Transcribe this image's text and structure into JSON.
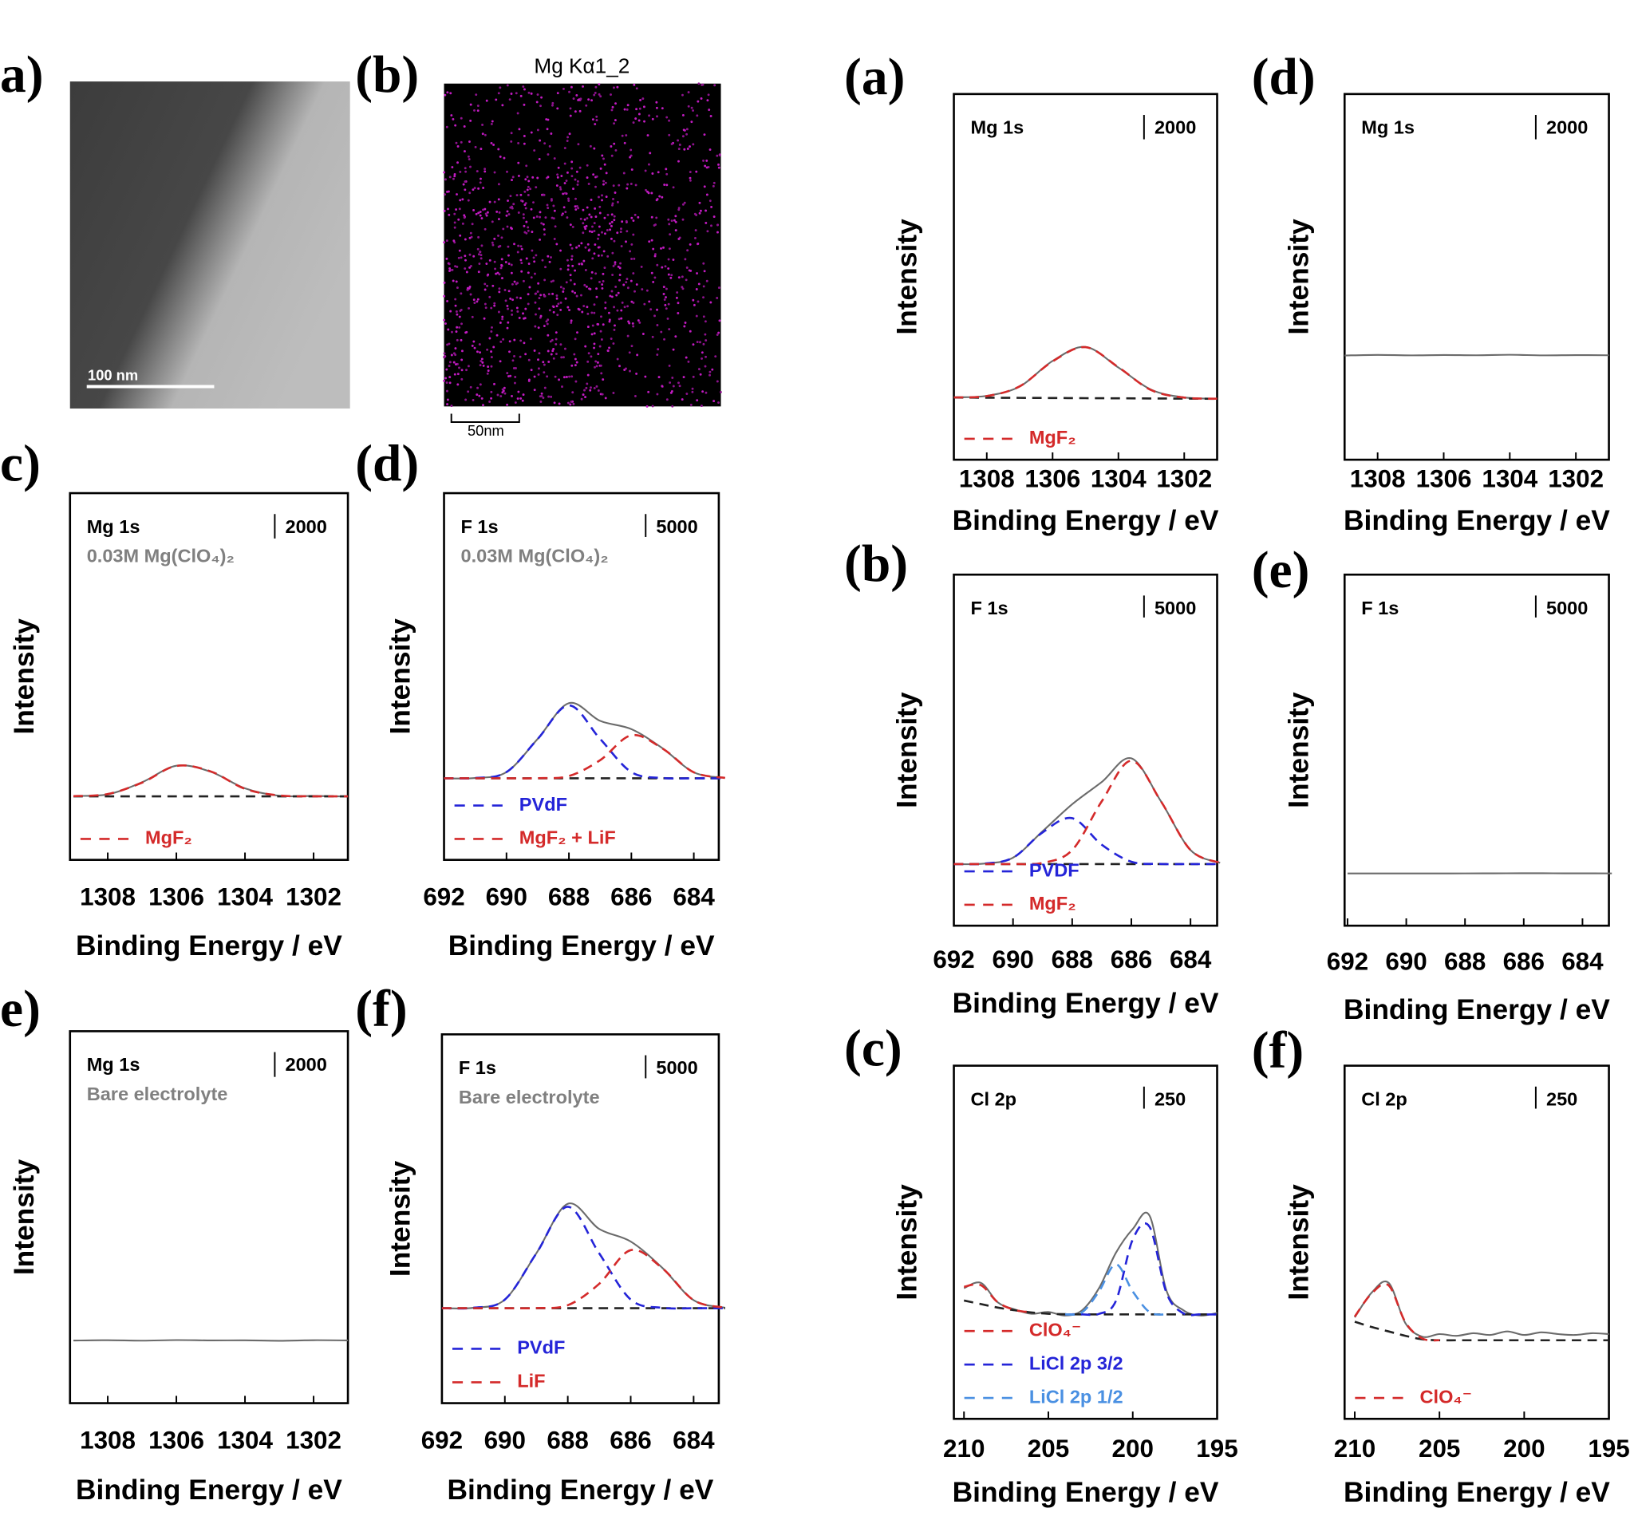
{
  "images": [
    {
      "panel_label": "a)",
      "scale_bar": "100 nm"
    },
    {
      "panel_label": "(b)",
      "title": "Mg Kα1_2",
      "scale_bar": "50nm"
    }
  ],
  "chart_data": [
    {
      "type": "line",
      "panel_label": "c)",
      "element": "Mg 1s",
      "subtitle": "0.03M Mg(ClO₄)₂",
      "scale_bar": 2000,
      "ylabel": "Intensity",
      "xlabel": "Binding Energy / eV",
      "xlim": [
        1309.1,
        1301
      ],
      "ylim": [
        0,
        30000
      ],
      "xticks": [
        1308,
        1306,
        1304,
        1302
      ],
      "x": [
        1309,
        1308,
        1307,
        1306,
        1305,
        1304,
        1303,
        1302,
        1301
      ],
      "series": [
        {
          "color": "#6b6b6b",
          "line_style": "solid",
          "values": [
            5230,
            5360,
            6350,
            7700,
            7210,
            5850,
            5240,
            5230,
            5180
          ]
        },
        {
          "color": "#222222",
          "line_style": "dashed",
          "values": [
            5200,
            5200,
            5200,
            5200,
            5200,
            5200,
            5200,
            5200,
            5200
          ]
        },
        {
          "name": "MgF₂",
          "color": "#d42a2a",
          "line_style": "dashed",
          "values": [
            5211,
            5385,
            6318,
            7686,
            7236,
            5813,
            5268,
            5200,
            5200
          ]
        }
      ]
    },
    {
      "type": "line",
      "panel_label": "(d)",
      "element": "F 1s",
      "subtitle": "0.03M Mg(ClO₄)₂",
      "scale_bar": 5000,
      "ylabel": "Intensity",
      "xlabel": "Binding Energy / eV",
      "xlim": [
        692,
        683.2
      ],
      "ylim": [
        0,
        80000
      ],
      "xticks": [
        692,
        690,
        688,
        686,
        684
      ],
      "x": [
        692,
        691,
        690,
        689,
        688,
        687,
        686,
        685,
        684,
        683
      ],
      "series": [
        {
          "color": "#6b6b6b",
          "line_style": "solid",
          "values": [
            17800,
            17862,
            19150,
            26397,
            34182,
            30326,
            28520,
            24332,
            19100,
            17876
          ]
        },
        {
          "color": "#222222",
          "line_style": "dashed",
          "values": [
            17800,
            17800,
            17800,
            17800,
            17800,
            17800,
            17800,
            17800,
            17800,
            17800
          ]
        },
        {
          "name": "PVdF",
          "color": "#2424d8",
          "line_style": "dashed",
          "values": [
            17800,
            17862,
            19150,
            26380,
            33700,
            26380,
            19150,
            17862,
            17800,
            17800
          ]
        },
        {
          "name": "MgF₂ + LiF",
          "color": "#d42a2a",
          "line_style": "dashed",
          "values": [
            17800,
            17800,
            17800,
            17817,
            18282,
            21746,
            27170,
            24270,
            19100,
            17876
          ]
        }
      ]
    },
    {
      "type": "line",
      "panel_label": "e)",
      "element": "Mg 1s",
      "subtitle": "Bare electrolyte",
      "scale_bar": 2000,
      "ylabel": "Intensity",
      "xlabel": "Binding Energy / eV",
      "xlim": [
        1309.1,
        1301
      ],
      "ylim": [
        0,
        30000
      ],
      "xticks": [
        1308,
        1306,
        1304,
        1302
      ],
      "x": [
        1309,
        1308,
        1307,
        1306,
        1305,
        1304,
        1303,
        1302,
        1301
      ],
      "series": [
        {
          "color": "#6b6b6b",
          "line_style": "solid",
          "values": [
            5050,
            5080,
            5040,
            5090,
            5060,
            5070,
            5030,
            5080,
            5060
          ]
        }
      ]
    },
    {
      "type": "line",
      "panel_label": "(f)",
      "element": "F 1s",
      "subtitle": "Bare electrolyte",
      "scale_bar": 5000,
      "ylabel": "Intensity",
      "xlabel": "Binding Energy / eV",
      "xlim": [
        692,
        683.2
      ],
      "ylim": [
        0,
        80000
      ],
      "xticks": [
        692,
        690,
        688,
        686,
        684
      ],
      "x": [
        692,
        691,
        690,
        689,
        688,
        687,
        686,
        685,
        684,
        683
      ],
      "series": [
        {
          "color": "#6b6b6b",
          "line_style": "solid",
          "values": [
            20600,
            20686,
            22470,
            32503,
            43245,
            37782,
            35060,
            29381,
            22342,
            20702
          ]
        },
        {
          "color": "#222222",
          "line_style": "dashed",
          "values": [
            20600,
            20600,
            20600,
            20600,
            20600,
            20600,
            20600,
            20600,
            20600,
            20600
          ]
        },
        {
          "name": "PVdF",
          "color": "#2424d8",
          "line_style": "dashed",
          "values": [
            20600,
            20686,
            22470,
            32480,
            42600,
            32480,
            22470,
            20686,
            20600,
            20600
          ]
        },
        {
          "name": "LiF",
          "color": "#d42a2a",
          "line_style": "dashed",
          "values": [
            20600,
            20600,
            20600,
            20623,
            21245,
            25902,
            33190,
            29295,
            22342,
            20702
          ]
        }
      ]
    },
    {
      "type": "line",
      "panel_label": "(a)",
      "element": "Mg 1s",
      "scale_bar": 2000,
      "ylabel": "Intensity",
      "xlabel": "Binding Energy / eV",
      "xlim": [
        1309,
        1301
      ],
      "ylim": [
        0,
        30000
      ],
      "xticks": [
        1308,
        1306,
        1304,
        1302
      ],
      "x": [
        1309,
        1308,
        1307,
        1306,
        1305,
        1304,
        1303,
        1302,
        1301
      ],
      "series": [
        {
          "color": "#6b6b6b",
          "line_style": "solid",
          "values": [
            5120,
            5240,
            6000,
            8100,
            9250,
            7560,
            5740,
            5110,
            5000
          ]
        },
        {
          "color": "#222222",
          "line_style": "dashed",
          "values": [
            5100,
            5088,
            5075,
            5063,
            5050,
            5038,
            5025,
            5013,
            5000
          ]
        },
        {
          "name": "MgF₂",
          "color": "#d42a2a",
          "line_style": "dashed",
          "values": [
            5108,
            5218,
            6021,
            8067,
            9233,
            7586,
            5706,
            5092,
            5004
          ]
        }
      ]
    },
    {
      "type": "line",
      "panel_label": "(b)",
      "element": "F 1s",
      "scale_bar": 5000,
      "ylabel": "Intensity",
      "xlabel": "Binding Energy / eV",
      "xlim": [
        692,
        683.1
      ],
      "ylim": [
        0,
        80000
      ],
      "xticks": [
        692,
        690,
        688,
        686,
        684
      ],
      "x": [
        692,
        691,
        690,
        689,
        688,
        687,
        686,
        685,
        684,
        683
      ],
      "series": [
        {
          "color": "#6b6b6b",
          "line_style": "solid",
          "values": [
            14050,
            14135,
            15503,
            21524,
            27680,
            32743,
            38135,
            28364,
            17237,
            14312
          ]
        },
        {
          "color": "#222222",
          "line_style": "dashed",
          "values": [
            14050,
            14050,
            14050,
            14050,
            14050,
            14050,
            14050,
            14050,
            14050,
            14050
          ]
        },
        {
          "name": "PVDF",
          "color": "#2424d8",
          "line_style": "dashed",
          "values": [
            14050,
            14135,
            15495,
            21262,
            24493,
            18448,
            14585,
            14069,
            14050,
            14050
          ]
        },
        {
          "name": "MgF₂",
          "color": "#d42a2a",
          "line_style": "dashed",
          "values": [
            14050,
            14050,
            14058,
            14312,
            17237,
            28345,
            37600,
            28345,
            17237,
            14312
          ]
        }
      ]
    },
    {
      "type": "line",
      "panel_label": "(c)",
      "element": "Cl 2p",
      "scale_bar": 250,
      "ylabel": "Intensity",
      "xlabel": "Binding Energy / eV",
      "xlim": [
        210.6,
        195
      ],
      "ylim": [
        0,
        4000
      ],
      "xticks": [
        210,
        205,
        200,
        195
      ],
      "x": [
        210,
        209,
        208,
        207,
        206,
        205,
        204,
        203,
        202,
        201,
        200,
        199,
        198,
        197,
        196,
        195
      ],
      "series": [
        {
          "color": "#6b6b6b",
          "line_style": "solid",
          "values": [
            1480,
            1540,
            1320,
            1240,
            1190,
            1210,
            1170,
            1230,
            1480,
            1880,
            2150,
            2300,
            1450,
            1230,
            1170,
            1200
          ]
        },
        {
          "color": "#222222",
          "line_style": "dashed",
          "values": [
            1340,
            1300,
            1260,
            1230,
            1205,
            1190,
            1185,
            1183,
            1183,
            1183,
            1183,
            1183,
            1183,
            1183,
            1183,
            1183
          ]
        },
        {
          "name": "ClO₄⁻",
          "color": "#d42a2a",
          "line_style": "dashed",
          "values": [
            1496,
            1514,
            1321,
            1234,
            1205,
            null,
            null,
            null,
            null,
            null,
            null,
            null,
            null,
            null,
            null,
            null
          ]
        },
        {
          "name": "LiCl 2p 3/2",
          "color": "#2424d8",
          "line_style": "dashed",
          "values": [
            null,
            null,
            null,
            null,
            null,
            null,
            1183,
            1183,
            1189,
            1335,
            2032,
            2174,
            1426,
            1195,
            1183,
            1183
          ]
        },
        {
          "name": "LiCl 2p 1/2",
          "color": "#4a90e2",
          "line_style": "dashed",
          "values": [
            null,
            null,
            null,
            null,
            null,
            null,
            1183,
            1208,
            1443,
            1751,
            1443,
            1208,
            1183,
            null,
            null,
            null
          ]
        }
      ]
    },
    {
      "type": "line",
      "panel_label": "(d)",
      "element": "Mg 1s",
      "scale_bar": 2000,
      "ylabel": "Intensity",
      "xlabel": "Binding Energy / eV",
      "xlim": [
        1309,
        1301
      ],
      "ylim": [
        0,
        30000
      ],
      "xticks": [
        1308,
        1306,
        1304,
        1302
      ],
      "x": [
        1309,
        1308,
        1307,
        1306,
        1305,
        1304,
        1303,
        1302,
        1301
      ],
      "series": [
        {
          "color": "#6b6b6b",
          "line_style": "solid",
          "values": [
            8550,
            8600,
            8560,
            8590,
            8570,
            8610,
            8560,
            8580,
            8570
          ]
        }
      ]
    },
    {
      "type": "line",
      "panel_label": "(e)",
      "element": "F 1s",
      "scale_bar": 5000,
      "ylabel": "Intensity",
      "xlabel": "Binding Energy / eV",
      "xlim": [
        692.1,
        683.1
      ],
      "ylim": [
        0,
        80000
      ],
      "xticks": [
        692,
        690,
        688,
        686,
        684
      ],
      "x": [
        692,
        691,
        690,
        689,
        688,
        687,
        686,
        685,
        684,
        683
      ],
      "series": [
        {
          "color": "#6b6b6b",
          "line_style": "solid",
          "values": [
            11900,
            11900,
            11910,
            11900,
            11920,
            11930,
            11950,
            11940,
            11930,
            11920
          ]
        }
      ]
    },
    {
      "type": "line",
      "panel_label": "(f)",
      "element": "Cl 2p",
      "scale_bar": 250,
      "ylabel": "Intensity",
      "xlabel": "Binding Energy / eV",
      "xlim": [
        210.6,
        195
      ],
      "ylim": [
        0,
        4000
      ],
      "xticks": [
        210,
        205,
        200,
        195
      ],
      "x": [
        210,
        209,
        208,
        207,
        206,
        205,
        204,
        203,
        202,
        201,
        200,
        199,
        198,
        197,
        196,
        195
      ],
      "series": [
        {
          "color": "#6b6b6b",
          "line_style": "solid",
          "values": [
            1150,
            1430,
            1540,
            1080,
            930,
            960,
            940,
            970,
            950,
            990,
            950,
            980,
            960,
            950,
            970,
            960
          ]
        },
        {
          "color": "#222222",
          "line_style": "dashed",
          "values": [
            1100,
            1040,
            990,
            940,
            900,
            890,
            890,
            890,
            890,
            890,
            890,
            890,
            890,
            890,
            890,
            890
          ]
        },
        {
          "name": "ClO₄⁻",
          "color": "#d42a2a",
          "line_style": "dashed",
          "values": [
            1158,
            1421,
            1511,
            1090,
            909,
            890,
            null,
            null,
            null,
            null,
            null,
            null,
            null,
            null,
            null,
            null
          ]
        }
      ]
    }
  ]
}
